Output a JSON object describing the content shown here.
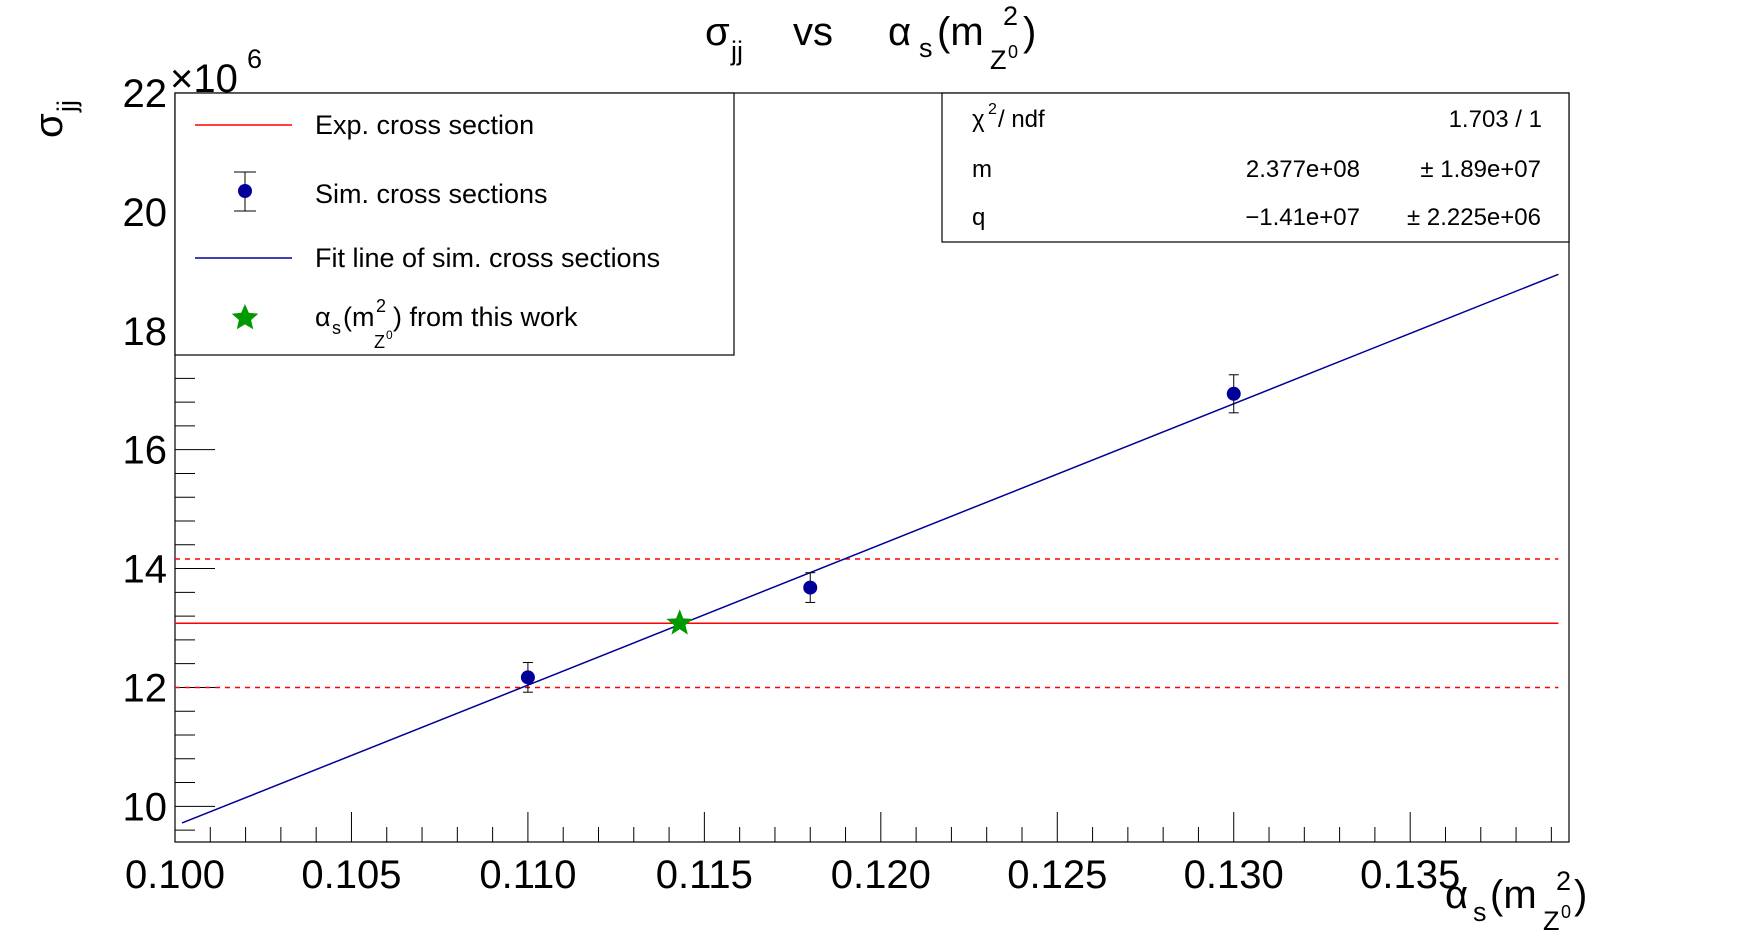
{
  "chart_data": {
    "type": "scatter",
    "title": {
      "main": "σ",
      "sub": "jj",
      "vs": "vs",
      "alpha": "α",
      "alpha_sub": "s",
      "paren_open": "(m",
      "sup": "2",
      "z": "Z",
      "z_sup": "0",
      "paren_close": ")"
    },
    "xlabel": {
      "alpha": "α",
      "alpha_sub": "s",
      "paren_open": "(m",
      "sup": "2",
      "z": "Z",
      "z_sup": "0",
      "paren_close": ")"
    },
    "ylabel": {
      "main": "σ",
      "sub": "jj"
    },
    "y_multiplier": {
      "times": "×10",
      "exp": "6"
    },
    "xlim": [
      0.1,
      0.1395
    ],
    "ylim": [
      9.4,
      22
    ],
    "x_tick_labels": [
      "0.100",
      "0.105",
      "0.110",
      "0.115",
      "0.120",
      "0.125",
      "0.130",
      "0.135"
    ],
    "x_tick_values": [
      0.1,
      0.105,
      0.11,
      0.115,
      0.12,
      0.125,
      0.13,
      0.135
    ],
    "y_tick_labels": [
      "10",
      "12",
      "14",
      "16",
      "18",
      "20",
      "22"
    ],
    "y_tick_values": [
      10,
      12,
      14,
      16,
      18,
      20,
      22
    ],
    "series": [
      {
        "name": "Sim. cross sections",
        "kind": "points",
        "color": "#000099",
        "x": [
          0.11,
          0.118,
          0.13
        ],
        "y": [
          12.17,
          13.68,
          16.94
        ],
        "yerr": [
          0.25,
          0.25,
          0.32
        ]
      },
      {
        "name": "Fit line of sim. cross sections",
        "kind": "line",
        "color": "#000099",
        "x": [
          0.1002,
          0.1392
        ],
        "y": [
          9.72,
          18.95
        ]
      },
      {
        "name": "Exp. cross section",
        "kind": "hline",
        "color": "#ff0000",
        "y": 13.08,
        "band": [
          12.0,
          14.16
        ],
        "x": [
          0.1,
          0.1392
        ]
      },
      {
        "name": "from this work",
        "kind": "star",
        "color": "#009900",
        "x": 0.1143,
        "y": 13.08
      }
    ],
    "legend": {
      "placement": "top-left",
      "entries": [
        {
          "label": "Exp. cross section",
          "symbol": "red-line"
        },
        {
          "label": "Sim. cross sections",
          "symbol": "point-errbar"
        },
        {
          "label": "Fit line of sim. cross sections",
          "symbol": "blue-line"
        },
        {
          "label_alpha": "α",
          "label_sub": "s",
          "label_paren": "(m",
          "label_sup": "2",
          "label_z": "Z",
          "label_zsup": "0",
          "label_rest": ") from this work",
          "symbol": "green-star"
        }
      ]
    },
    "stats_box": {
      "placement": "top-right",
      "rows": [
        {
          "name_main": "χ",
          "name_sup": "2",
          "name_rest": " / ndf",
          "value": "1.703 / 1",
          "error": ""
        },
        {
          "name_main": "m",
          "name_sup": "",
          "name_rest": "",
          "value": "2.377e+08",
          "error": "± 1.89e+07"
        },
        {
          "name_main": "q",
          "name_sup": "",
          "name_rest": "",
          "value": "−1.41e+07",
          "error": "± 2.225e+06"
        }
      ]
    }
  }
}
